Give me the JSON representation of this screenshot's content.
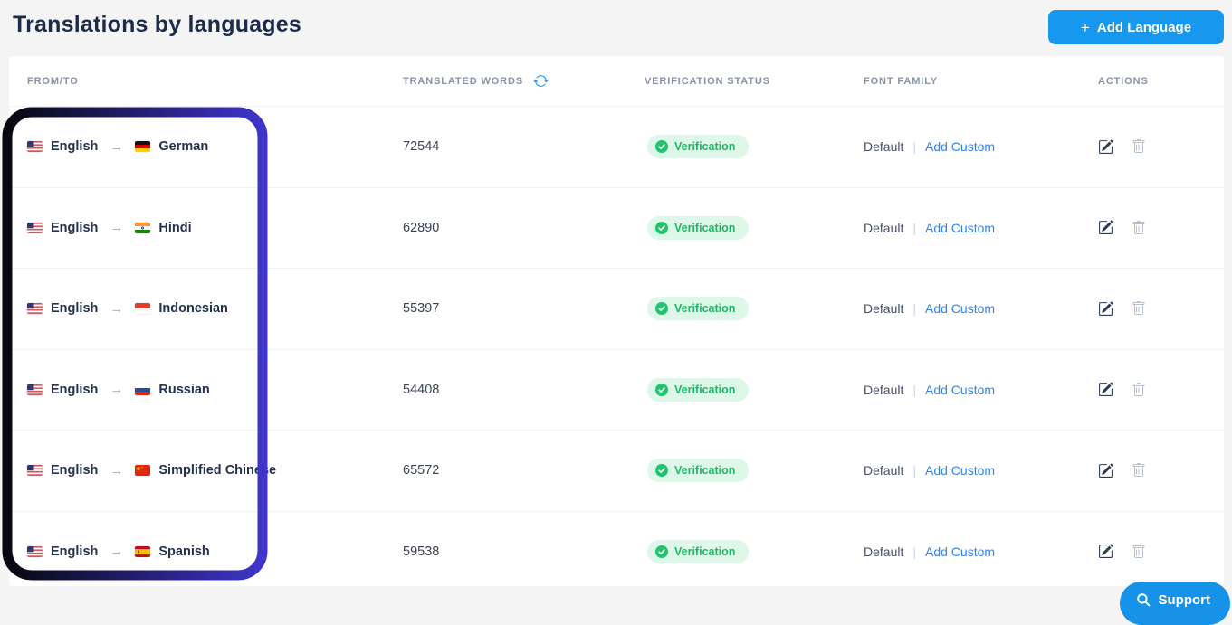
{
  "page": {
    "title": "Translations by languages",
    "add_language_button": "Add Language",
    "support_button": "Support"
  },
  "table": {
    "headers": {
      "from_to": "FROM/TO",
      "translated_words": "TRANSLATED WORDS",
      "verification_status": "VERIFICATION STATUS",
      "font_family": "FONT FAMILY",
      "actions": "ACTIONS"
    },
    "rows": [
      {
        "from_language": "English",
        "from_flag": "us",
        "to_language": "German",
        "to_flag": "de",
        "translated_words": "72544",
        "status": "Verification",
        "font_default_label": "Default",
        "font_custom_label": "Add Custom"
      },
      {
        "from_language": "English",
        "from_flag": "us",
        "to_language": "Hindi",
        "to_flag": "in",
        "translated_words": "62890",
        "status": "Verification",
        "font_default_label": "Default",
        "font_custom_label": "Add Custom"
      },
      {
        "from_language": "English",
        "from_flag": "us",
        "to_language": "Indonesian",
        "to_flag": "id",
        "translated_words": "55397",
        "status": "Verification",
        "font_default_label": "Default",
        "font_custom_label": "Add Custom"
      },
      {
        "from_language": "English",
        "from_flag": "us",
        "to_language": "Russian",
        "to_flag": "ru",
        "translated_words": "54408",
        "status": "Verification",
        "font_default_label": "Default",
        "font_custom_label": "Add Custom"
      },
      {
        "from_language": "English",
        "from_flag": "us",
        "to_language": "Simplified Chinese",
        "to_flag": "cn",
        "translated_words": "65572",
        "status": "Verification",
        "font_default_label": "Default",
        "font_custom_label": "Add Custom"
      },
      {
        "from_language": "English",
        "from_flag": "us",
        "to_language": "Spanish",
        "to_flag": "es",
        "translated_words": "59538",
        "status": "Verification",
        "font_default_label": "Default",
        "font_custom_label": "Add Custom"
      }
    ],
    "pair_arrow": "→",
    "font_divider": "|"
  },
  "icons": {
    "add_language": "plus-icon",
    "refresh": "refresh-icon",
    "verified": "check-circle-icon",
    "edit": "edit-pencil-square-icon",
    "delete": "trash-icon",
    "support": "search-icon"
  },
  "colors": {
    "accent_blue": "#1698ee",
    "link_blue": "#2e86f0",
    "status_green": "#1eb967",
    "status_bg_green": "#ddf7e8",
    "title_navy": "#1c2b4a",
    "highlight_gradient_start": "#07070f",
    "highlight_gradient_end": "#3e35cb"
  }
}
